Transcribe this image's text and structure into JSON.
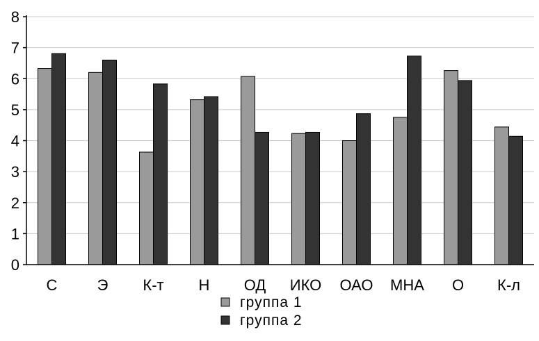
{
  "chart_data": {
    "type": "bar",
    "categories": [
      "С",
      "Э",
      "К-т",
      "Н",
      "ОД",
      "ИКО",
      "ОАО",
      "МНА",
      "О",
      "К-л"
    ],
    "series": [
      {
        "name": "группа 1",
        "color": "#9a9a9a",
        "values": [
          6.33,
          6.2,
          3.63,
          5.32,
          6.07,
          4.23,
          4.0,
          4.75,
          6.26,
          4.44
        ]
      },
      {
        "name": "группа 2",
        "color": "#333333",
        "values": [
          6.81,
          6.6,
          5.83,
          5.42,
          4.27,
          4.27,
          4.87,
          6.73,
          5.94,
          4.14
        ]
      }
    ],
    "title": "",
    "xlabel": "",
    "ylabel": "",
    "ylim": [
      0,
      8
    ],
    "yticks": [
      0,
      1,
      2,
      3,
      4,
      5,
      6,
      7,
      8
    ],
    "grid": true,
    "legend_position": "bottom-center"
  }
}
